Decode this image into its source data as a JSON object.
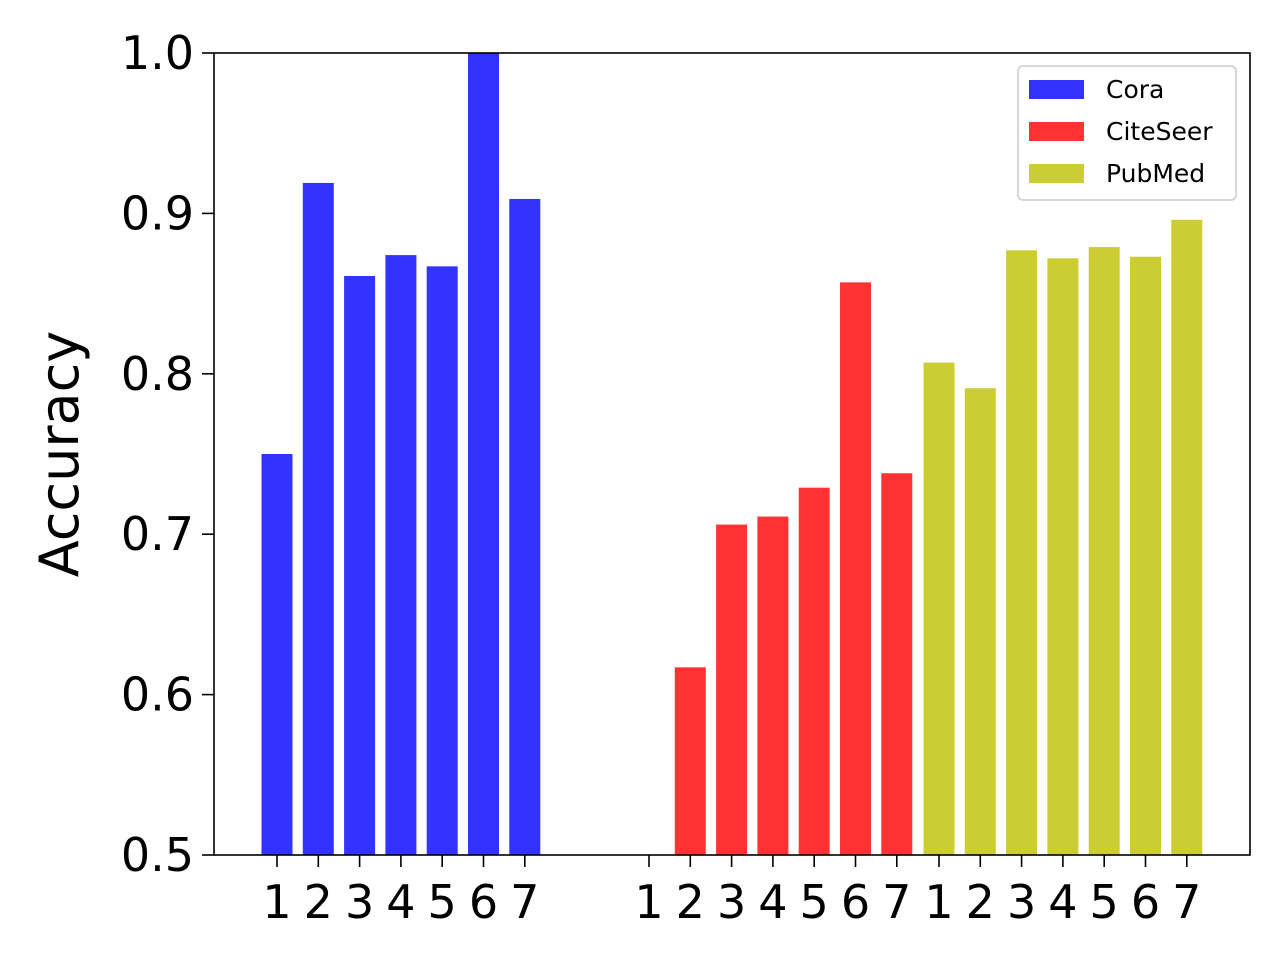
{
  "chart_data": {
    "type": "bar",
    "title": "",
    "xlabel": "",
    "ylabel": "Accuracy",
    "ylim": [
      0.5,
      1.0
    ],
    "yticks": [
      "0.5",
      "0.6",
      "0.7",
      "0.8",
      "0.9",
      "1.0"
    ],
    "grid": false,
    "legend_position": "top-right",
    "categories": [
      "1",
      "2",
      "3",
      "4",
      "5",
      "6",
      "7"
    ],
    "series": [
      {
        "name": "Cora",
        "color": "#3333ff",
        "values": [
          0.75,
          0.919,
          0.861,
          0.874,
          0.867,
          1.0,
          0.909
        ]
      },
      {
        "name": "CiteSeer",
        "color": "#ff3333",
        "values": [
          0.5,
          0.617,
          0.706,
          0.711,
          0.729,
          0.857,
          0.738
        ]
      },
      {
        "name": "PubMed",
        "color": "#cccc33",
        "values": [
          0.807,
          0.791,
          0.877,
          0.872,
          0.879,
          0.873,
          0.896
        ]
      }
    ]
  }
}
